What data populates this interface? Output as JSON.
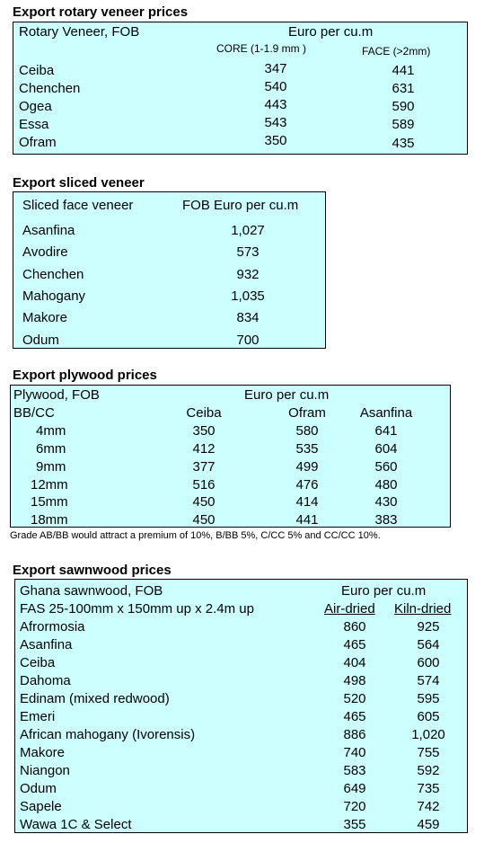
{
  "rotary": {
    "title": "Export rotary veneer prices",
    "header_left": "Rotary Veneer,  FOB",
    "header_right": "Euro  per cu.m",
    "col_core": "CORE (1-1.9 mm )",
    "col_face": "FACE (>2mm)",
    "rows": [
      {
        "name": "Ceiba",
        "core": "347",
        "face": "441"
      },
      {
        "name": "Chenchen",
        "core": "540",
        "face": "631"
      },
      {
        "name": "Ogea",
        "core": "443",
        "face": "590"
      },
      {
        "name": "Essa",
        "core": "543",
        "face": "589"
      },
      {
        "name": "Ofram",
        "core": "350",
        "face": "435"
      }
    ]
  },
  "sliced": {
    "title": "Export sliced veneer",
    "header_left": "Sliced face veneer",
    "header_right": "FOB Euro per cu.m",
    "rows": [
      {
        "name": "Asanfina",
        "price": "1,027"
      },
      {
        "name": "Avodire",
        "price": "573"
      },
      {
        "name": "Chenchen",
        "price": "932"
      },
      {
        "name": "Mahogany",
        "price": "1,035"
      },
      {
        "name": "Makore",
        "price": "834"
      },
      {
        "name": "Odum",
        "price": "700"
      }
    ]
  },
  "plywood": {
    "title": "Export plywood prices",
    "header_left": "Plywood, FOB",
    "header_right": "Euro per cu.m",
    "grade": "BB/CC",
    "columns": [
      "Ceiba",
      "Ofram",
      "Asanfina"
    ],
    "rows": [
      {
        "size": "4mm",
        "ceiba": "350",
        "ofram": "580",
        "asanfina": "641"
      },
      {
        "size": "6mm",
        "ceiba": "412",
        "ofram": "535",
        "asanfina": "604"
      },
      {
        "size": "9mm",
        "ceiba": "377",
        "ofram": "499",
        "asanfina": "560"
      },
      {
        "size": "12mm",
        "ceiba": "516",
        "ofram": "476",
        "asanfina": "480"
      },
      {
        "size": "15mm",
        "ceiba": "450",
        "ofram": "414",
        "asanfina": "430"
      },
      {
        "size": "18mm",
        "ceiba": "450",
        "ofram": "441",
        "asanfina": "383"
      }
    ],
    "note": "Grade AB/BB would attract a premium of 10%, B/BB 5%, C/CC 5% and CC/CC 10%."
  },
  "sawnwood": {
    "title": "Export sawnwood prices",
    "header_left": "Ghana sawnwood, FOB",
    "header_right": "Euro per cu.m",
    "spec": "FAS 25-100mm x 150mm up x 2.4m up",
    "col_air": "Air-dried",
    "col_kiln": "Kiln-dried",
    "rows": [
      {
        "name": "Afrormosia",
        "air": "860",
        "kiln": "925"
      },
      {
        "name": "Asanfina",
        "air": "465",
        "kiln": "564"
      },
      {
        "name": "Ceiba",
        "air": "404",
        "kiln": "600"
      },
      {
        "name": "Dahoma",
        "air": "498",
        "kiln": "574"
      },
      {
        "name": "Edinam (mixed redwood)",
        "air": "520",
        "kiln": "595"
      },
      {
        "name": "Emeri",
        "air": "465",
        "kiln": "605"
      },
      {
        "name": "African mahogany (Ivorensis)",
        "air": "886",
        "kiln": "1,020"
      },
      {
        "name": "Makore",
        "air": "740",
        "kiln": "755"
      },
      {
        "name": "Niangon",
        "air": "583",
        "kiln": "592"
      },
      {
        "name": "Odum",
        "air": "649",
        "kiln": "735"
      },
      {
        "name": "Sapele",
        "air": "720",
        "kiln": "742"
      },
      {
        "name": "Wawa 1C & Select",
        "air": "355",
        "kiln": "459"
      }
    ]
  }
}
